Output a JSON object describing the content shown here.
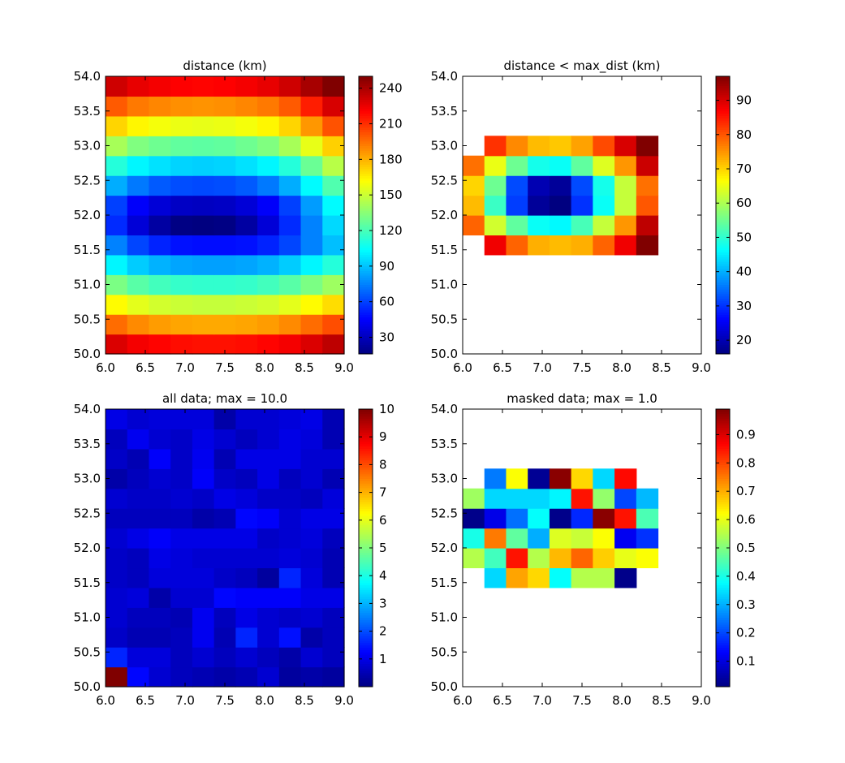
{
  "chart_data": [
    {
      "type": "heatmap",
      "title": "distance (km)",
      "xlim": [
        6.0,
        9.0
      ],
      "ylim": [
        50.0,
        54.0
      ],
      "x_ticks": [
        "6.0",
        "6.5",
        "7.0",
        "7.5",
        "8.0",
        "8.5",
        "9.0"
      ],
      "y_ticks": [
        "50.0",
        "50.5",
        "51.0",
        "51.5",
        "52.0",
        "52.5",
        "53.0",
        "53.5",
        "54.0"
      ],
      "colorbar": {
        "vmin": 16,
        "vmax": 250,
        "ticks": [
          "30",
          "60",
          "90",
          "120",
          "150",
          "180",
          "210",
          "240"
        ],
        "tick_values": [
          30,
          60,
          90,
          120,
          150,
          180,
          210,
          240
        ]
      },
      "values": [
        [
          229,
          223,
          220,
          218,
          217,
          217,
          218,
          220,
          223,
          229,
          236
        ],
        [
          196,
          189,
          185,
          183,
          182,
          182,
          183,
          185,
          189,
          196,
          203
        ],
        [
          163,
          156,
          152,
          150,
          149,
          149,
          150,
          152,
          156,
          163,
          170
        ],
        [
          132,
          124,
          119,
          116,
          115,
          115,
          116,
          119,
          124,
          132,
          140
        ],
        [
          102,
          92,
          86,
          83,
          82,
          82,
          83,
          86,
          92,
          102,
          112
        ],
        [
          75,
          61,
          53,
          49,
          48,
          48,
          49,
          53,
          61,
          75,
          89
        ],
        [
          55,
          36,
          24,
          17,
          16,
          17,
          24,
          36,
          55,
          75,
          95
        ],
        [
          60,
          44,
          36,
          32,
          31,
          32,
          36,
          44,
          60,
          81,
          103
        ],
        [
          85,
          73,
          66,
          63,
          62,
          63,
          66,
          73,
          85,
          103,
          122
        ],
        [
          112,
          102,
          97,
          94,
          93,
          94,
          97,
          102,
          112,
          128,
          146
        ],
        [
          142,
          133,
          129,
          126,
          125,
          126,
          129,
          133,
          142,
          157,
          173
        ],
        [
          172,
          164,
          160,
          158,
          157,
          158,
          160,
          164,
          172,
          186,
          202
        ],
        [
          200,
          193,
          190,
          188,
          187,
          188,
          190,
          193,
          200,
          214,
          230
        ],
        [
          232,
          226,
          223,
          221,
          220,
          221,
          223,
          226,
          232,
          241,
          250
        ]
      ]
    },
    {
      "type": "heatmap",
      "title": "distance < max_dist (km)",
      "xlim": [
        6.0,
        9.0
      ],
      "ylim": [
        50.0,
        54.0
      ],
      "x_ticks": [
        "6.0",
        "6.5",
        "7.0",
        "7.5",
        "8.0",
        "8.5",
        "9.0"
      ],
      "y_ticks": [
        "50.0",
        "50.5",
        "51.0",
        "51.5",
        "52.0",
        "52.5",
        "53.0",
        "53.5",
        "54.0"
      ],
      "colorbar": {
        "vmin": 16,
        "vmax": 97,
        "ticks": [
          "20",
          "30",
          "40",
          "50",
          "60",
          "70",
          "80",
          "90"
        ],
        "tick_values": [
          20,
          30,
          40,
          50,
          60,
          70,
          80,
          90
        ]
      },
      "values": [
        [
          null,
          null,
          null,
          null,
          null,
          null,
          null,
          null,
          null,
          null,
          null
        ],
        [
          null,
          null,
          null,
          null,
          null,
          null,
          null,
          null,
          null,
          null,
          null
        ],
        [
          null,
          null,
          null,
          null,
          null,
          null,
          null,
          null,
          null,
          null,
          null
        ],
        [
          null,
          null,
          null,
          null,
          null,
          null,
          null,
          null,
          null,
          null,
          null
        ],
        [
          null,
          null,
          null,
          null,
          null,
          null,
          null,
          null,
          null,
          null,
          null
        ],
        [
          null,
          88,
          79,
          73,
          72,
          73,
          79,
          88,
          97,
          null,
          null
        ],
        [
          79,
          63,
          54,
          47,
          46,
          52,
          62,
          75,
          92,
          null,
          null
        ],
        [
          72,
          51,
          31,
          18,
          16,
          30,
          47,
          62,
          80,
          null,
          null
        ],
        [
          70,
          55,
          32,
          20,
          18,
          32,
          48,
          62,
          78,
          null,
          null
        ],
        [
          78,
          65,
          55,
          48,
          47,
          54,
          64,
          75,
          91,
          null,
          null
        ],
        [
          null,
          83,
          76,
          72,
          71,
          74,
          81,
          90,
          97,
          null,
          null
        ],
        [
          null,
          null,
          null,
          null,
          null,
          null,
          null,
          null,
          null,
          null,
          null
        ],
        [
          null,
          null,
          null,
          null,
          null,
          null,
          null,
          null,
          null,
          null,
          null
        ],
        [
          null,
          null,
          null,
          null,
          null,
          null,
          null,
          null,
          null,
          null,
          null
        ]
      ]
    },
    {
      "type": "heatmap",
      "title": "all data; max = 10.0",
      "xlim": [
        6.0,
        9.0
      ],
      "ylim": [
        50.0,
        54.0
      ],
      "x_ticks": [
        "6.0",
        "6.5",
        "7.0",
        "7.5",
        "8.0",
        "8.5",
        "9.0"
      ],
      "y_ticks": [
        "50.0",
        "50.5",
        "51.0",
        "51.5",
        "52.0",
        "52.5",
        "53.0",
        "53.5",
        "54.0"
      ],
      "colorbar": {
        "vmin": 0.0,
        "vmax": 10.0,
        "ticks": [
          "1",
          "2",
          "3",
          "4",
          "5",
          "6",
          "7",
          "8",
          "9",
          "10"
        ],
        "tick_values": [
          1,
          2,
          3,
          4,
          5,
          6,
          7,
          8,
          9,
          10
        ]
      },
      "values": [
        [
          10.0,
          1.3,
          0.8,
          0.6,
          0.5,
          0.4,
          0.5,
          0.8,
          0.3,
          0.4,
          0.3
        ],
        [
          1.6,
          0.9,
          0.9,
          0.6,
          0.8,
          0.6,
          0.8,
          0.6,
          0.4,
          0.8,
          0.6
        ],
        [
          0.7,
          0.5,
          0.5,
          0.6,
          1.1,
          0.5,
          1.6,
          0.8,
          1.4,
          0.4,
          0.6
        ],
        [
          0.8,
          0.6,
          0.6,
          0.5,
          1.1,
          0.6,
          1.0,
          0.8,
          0.7,
          0.8,
          0.6
        ],
        [
          0.8,
          0.9,
          0.4,
          0.8,
          0.8,
          1.3,
          1.2,
          1.2,
          1.2,
          1.0,
          1.0
        ],
        [
          0.7,
          0.6,
          0.9,
          0.9,
          0.9,
          0.7,
          0.6,
          0.3,
          1.6,
          0.9,
          0.5
        ],
        [
          0.7,
          0.6,
          1.0,
          0.9,
          0.8,
          0.8,
          0.8,
          0.8,
          0.9,
          0.8,
          0.5
        ],
        [
          0.8,
          1.0,
          1.2,
          1.0,
          1.0,
          1.0,
          1.0,
          0.7,
          0.8,
          0.9,
          0.6
        ],
        [
          0.6,
          0.6,
          0.6,
          0.6,
          0.4,
          0.5,
          1.3,
          1.2,
          0.8,
          1.0,
          1.0
        ],
        [
          0.8,
          0.7,
          0.7,
          0.8,
          0.7,
          1.0,
          0.9,
          0.7,
          0.7,
          0.6,
          0.9
        ],
        [
          0.4,
          0.6,
          0.8,
          0.7,
          1.2,
          0.7,
          0.6,
          1.0,
          0.6,
          0.8,
          0.5
        ],
        [
          0.7,
          0.5,
          1.2,
          0.7,
          1.1,
          0.5,
          1.0,
          1.0,
          1.0,
          0.8,
          0.8
        ],
        [
          0.6,
          1.1,
          0.8,
          0.7,
          1.0,
          0.8,
          0.6,
          0.8,
          1.0,
          0.9,
          0.5
        ],
        [
          1.0,
          0.8,
          0.9,
          0.9,
          0.9,
          0.4,
          0.8,
          0.8,
          0.9,
          1.0,
          0.5
        ]
      ]
    },
    {
      "type": "heatmap",
      "title": "masked data; max = 1.0",
      "xlim": [
        6.0,
        9.0
      ],
      "ylim": [
        50.0,
        54.0
      ],
      "x_ticks": [
        "6.0",
        "6.5",
        "7.0",
        "7.5",
        "8.0",
        "8.5",
        "9.0"
      ],
      "y_ticks": [
        "50.0",
        "50.5",
        "51.0",
        "51.5",
        "52.0",
        "52.5",
        "53.0",
        "53.5",
        "54.0"
      ],
      "colorbar": {
        "vmin": 0.01,
        "vmax": 0.99,
        "ticks": [
          "0.1",
          "0.2",
          "0.3",
          "0.4",
          "0.5",
          "0.6",
          "0.7",
          "0.8",
          "0.9"
        ],
        "tick_values": [
          0.1,
          0.2,
          0.3,
          0.4,
          0.5,
          0.6,
          0.7,
          0.8,
          0.9
        ]
      },
      "values": [
        [
          null,
          null,
          null,
          null,
          null,
          null,
          null,
          null,
          null,
          null,
          null
        ],
        [
          null,
          null,
          null,
          null,
          null,
          null,
          null,
          null,
          null,
          null,
          null
        ],
        [
          null,
          null,
          null,
          null,
          null,
          null,
          null,
          null,
          null,
          null,
          null
        ],
        [
          null,
          null,
          null,
          null,
          null,
          null,
          null,
          null,
          null,
          null,
          null
        ],
        [
          null,
          null,
          null,
          null,
          null,
          null,
          null,
          null,
          null,
          null,
          null
        ],
        [
          null,
          0.34,
          0.71,
          0.66,
          0.38,
          0.55,
          0.55,
          0.02,
          null,
          null,
          null
        ],
        [
          0.55,
          0.44,
          0.85,
          0.55,
          0.69,
          0.77,
          0.67,
          0.6,
          0.62,
          null,
          null
        ],
        [
          0.4,
          0.75,
          0.47,
          0.3,
          0.59,
          0.57,
          0.62,
          0.12,
          0.18,
          null,
          null
        ],
        [
          0.02,
          0.11,
          0.24,
          0.38,
          0.02,
          0.17,
          0.98,
          0.85,
          0.45,
          null,
          null
        ],
        [
          0.53,
          0.34,
          0.34,
          0.34,
          0.37,
          0.85,
          0.52,
          0.2,
          0.31,
          null,
          null
        ],
        [
          null,
          0.25,
          0.62,
          0.03,
          0.98,
          0.66,
          0.34,
          0.86,
          null,
          null,
          null
        ],
        [
          null,
          null,
          null,
          null,
          null,
          null,
          null,
          null,
          null,
          null,
          null
        ],
        [
          null,
          null,
          null,
          null,
          null,
          null,
          null,
          null,
          null,
          null,
          null
        ],
        [
          null,
          null,
          null,
          null,
          null,
          null,
          null,
          null,
          null,
          null,
          null
        ]
      ]
    }
  ]
}
